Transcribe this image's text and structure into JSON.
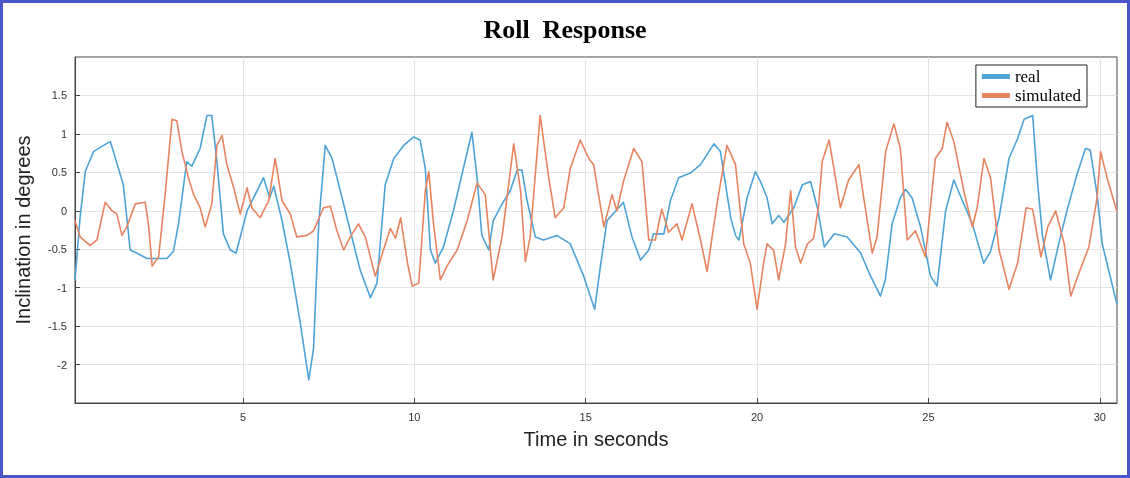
{
  "chart_data": {
    "type": "line",
    "title": "Roll  Response",
    "xlabel": "Time in seconds",
    "ylabel": "Inclination in degrees",
    "xlim": [
      0.1,
      30.5
    ],
    "xticks": [
      5,
      10,
      15,
      20,
      25,
      30
    ],
    "ylim": [
      -2.5,
      2
    ],
    "yticks": [
      -2,
      -1.5,
      -1,
      -0.5,
      0,
      0.5,
      1,
      1.5
    ],
    "grid": true,
    "legend": "top right",
    "marker": "none",
    "line_style": "solid",
    "series": [
      {
        "name": "real",
        "color": "#4da3d6",
        "x": [
          0.1,
          0.25,
          0.4,
          0.64,
          0.93,
          1.13,
          1.51,
          1.71,
          1.9,
          2.2,
          2.59,
          2.78,
          2.97,
          3.12,
          3.36,
          3.51,
          3.75,
          3.95,
          4.09,
          4.24,
          4.43,
          4.63,
          4.8,
          5.12,
          5.41,
          5.6,
          5.78,
          5.9,
          6.14,
          6.38,
          6.67,
          6.92,
          7.06,
          7.21,
          7.4,
          7.6,
          7.84,
          8.13,
          8.42,
          8.72,
          8.91,
          9.15,
          9.4,
          9.69,
          9.98,
          10.17,
          10.32,
          10.47,
          10.61,
          10.85,
          11.14,
          11.43,
          11.68,
          11.83,
          11.97,
          12.17,
          12.3,
          12.56,
          12.8,
          13.0,
          13.14,
          13.29,
          13.53,
          13.77,
          14.16,
          14.55,
          14.94,
          15.26,
          15.43,
          15.62,
          16.1,
          16.35,
          16.6,
          16.84,
          16.98,
          17.28,
          17.47,
          17.71,
          18.05,
          18.35,
          18.74,
          18.93,
          19.23,
          19.37,
          19.47,
          19.71,
          19.95,
          20.1,
          20.29,
          20.44,
          20.63,
          20.78,
          21.07,
          21.32,
          21.56,
          21.76,
          21.96,
          22.25,
          22.63,
          23.02,
          23.31,
          23.6,
          23.74,
          23.94,
          24.18,
          24.33,
          24.52,
          24.77,
          25.06,
          25.25,
          25.5,
          25.74,
          25.99,
          26.28,
          26.61,
          26.81,
          27.06,
          27.35,
          27.6,
          27.79,
          28.04,
          28.18,
          28.33,
          28.56,
          28.8,
          29.04,
          29.33,
          29.58,
          29.72,
          29.92,
          30.07,
          30.49
        ],
        "values": [
          -0.9,
          -0.08,
          0.51,
          0.77,
          0.85,
          0.9,
          0.34,
          -0.51,
          -0.55,
          -0.62,
          -0.62,
          -0.62,
          -0.53,
          -0.17,
          0.64,
          0.58,
          0.81,
          1.24,
          1.24,
          0.64,
          -0.3,
          -0.51,
          -0.55,
          0,
          0.26,
          0.43,
          0.17,
          0.32,
          -0.13,
          -0.68,
          -1.45,
          -2.2,
          -1.79,
          -0.17,
          0.85,
          0.68,
          0.26,
          -0.26,
          -0.77,
          -1.13,
          -0.94,
          0.34,
          0.68,
          0.85,
          0.96,
          0.92,
          0.55,
          -0.51,
          -0.68,
          -0.47,
          0,
          0.55,
          1.02,
          0.43,
          -0.32,
          -0.51,
          -0.13,
          0.09,
          0.26,
          0.53,
          0.53,
          0.13,
          -0.34,
          -0.38,
          -0.32,
          -0.43,
          -0.85,
          -1.28,
          -0.72,
          -0.13,
          0.11,
          -0.34,
          -0.64,
          -0.51,
          -0.3,
          -0.3,
          0.13,
          0.43,
          0.49,
          0.6,
          0.87,
          0.77,
          -0.09,
          -0.32,
          -0.38,
          0.17,
          0.51,
          0.38,
          0.17,
          -0.17,
          -0.06,
          -0.15,
          0.04,
          0.34,
          0.38,
          0.04,
          -0.47,
          -0.3,
          -0.34,
          -0.55,
          -0.85,
          -1.11,
          -0.9,
          -0.17,
          0.17,
          0.28,
          0.17,
          -0.21,
          -0.85,
          -0.98,
          0,
          0.4,
          0.13,
          -0.17,
          -0.68,
          -0.53,
          -0.09,
          0.68,
          0.94,
          1.19,
          1.24,
          0.38,
          -0.34,
          -0.9,
          -0.43,
          0,
          0.47,
          0.81,
          0.79,
          0.21,
          -0.43,
          -1.2
        ]
      },
      {
        "name": "simulated",
        "color": "#e8835f",
        "x": [
          0.1,
          0.25,
          0.54,
          0.74,
          0.98,
          1.18,
          1.32,
          1.47,
          1.61,
          1.86,
          2.15,
          2.25,
          2.35,
          2.54,
          2.73,
          2.93,
          3.07,
          3.22,
          3.41,
          3.56,
          3.75,
          3.9,
          4.09,
          4.24,
          4.39,
          4.53,
          4.73,
          4.92,
          5.12,
          5.26,
          5.5,
          5.75,
          5.94,
          6.14,
          6.38,
          6.57,
          6.87,
          7.06,
          7.35,
          7.55,
          7.74,
          7.94,
          8.13,
          8.37,
          8.57,
          8.86,
          9.1,
          9.3,
          9.45,
          9.6,
          9.8,
          9.94,
          10.13,
          10.32,
          10.42,
          10.56,
          10.76,
          10.95,
          11.25,
          11.54,
          11.83,
          12.07,
          12.3,
          12.56,
          12.9,
          13.1,
          13.24,
          13.38,
          13.67,
          13.92,
          14.11,
          14.36,
          14.55,
          14.84,
          15.09,
          15.23,
          15.53,
          15.77,
          15.91,
          16.1,
          16.4,
          16.64,
          16.84,
          17.03,
          17.22,
          17.42,
          17.66,
          17.81,
          18.1,
          18.35,
          18.54,
          18.83,
          19.12,
          19.37,
          19.61,
          19.8,
          20.0,
          20.19,
          20.29,
          20.48,
          20.63,
          20.83,
          20.98,
          21.12,
          21.27,
          21.47,
          21.65,
          21.8,
          21.9,
          22.1,
          22.24,
          22.43,
          22.67,
          22.97,
          23.11,
          23.36,
          23.5,
          23.75,
          23.99,
          24.18,
          24.38,
          24.62,
          24.91,
          25.2,
          25.4,
          25.54,
          25.74,
          26.03,
          26.28,
          26.42,
          26.62,
          26.81,
          27.06,
          27.35,
          27.6,
          27.85,
          28.04,
          28.28,
          28.48,
          28.71,
          28.96,
          29.15,
          29.39,
          29.68,
          29.92,
          30.02,
          30.21,
          30.49
        ],
        "values": [
          -0.13,
          -0.34,
          -0.45,
          -0.38,
          0.11,
          0,
          -0.04,
          -0.32,
          -0.21,
          0.09,
          0.11,
          -0.21,
          -0.72,
          -0.6,
          0.21,
          1.19,
          1.17,
          0.77,
          0.43,
          0.21,
          0.04,
          -0.21,
          0.09,
          0.85,
          0.98,
          0.6,
          0.3,
          -0.04,
          0.3,
          0.04,
          -0.09,
          0.13,
          0.68,
          0.13,
          -0.04,
          -0.34,
          -0.32,
          -0.26,
          0.04,
          0.06,
          -0.26,
          -0.51,
          -0.34,
          -0.17,
          -0.34,
          -0.85,
          -0.51,
          -0.23,
          -0.36,
          -0.09,
          -0.68,
          -0.98,
          -0.94,
          0.26,
          0.51,
          -0.17,
          -0.9,
          -0.72,
          -0.51,
          -0.13,
          0.36,
          0.21,
          -0.9,
          -0.34,
          0.87,
          0.26,
          -0.66,
          -0.34,
          1.24,
          0.43,
          -0.09,
          0.04,
          0.55,
          0.92,
          0.68,
          0.6,
          -0.21,
          0.21,
          0,
          0.38,
          0.81,
          0.64,
          -0.38,
          -0.38,
          0.02,
          -0.28,
          -0.17,
          -0.38,
          0.09,
          -0.38,
          -0.79,
          0.09,
          0.85,
          0.6,
          -0.43,
          -0.68,
          -1.28,
          -0.68,
          -0.43,
          -0.51,
          -0.9,
          -0.43,
          0.26,
          -0.47,
          -0.68,
          -0.43,
          -0.36,
          0.09,
          0.64,
          0.92,
          0.55,
          0.04,
          0.4,
          0.6,
          0.17,
          -0.55,
          -0.34,
          0.77,
          1.13,
          0.81,
          -0.38,
          -0.26,
          -0.6,
          0.68,
          0.81,
          1.15,
          0.9,
          0.26,
          -0.21,
          0.04,
          0.68,
          0.43,
          -0.51,
          -1.02,
          -0.68,
          0.04,
          0.02,
          -0.6,
          -0.21,
          0,
          -0.43,
          -1.11,
          -0.81,
          -0.47,
          0.17,
          0.77,
          0.43,
          0
        ]
      }
    ]
  }
}
